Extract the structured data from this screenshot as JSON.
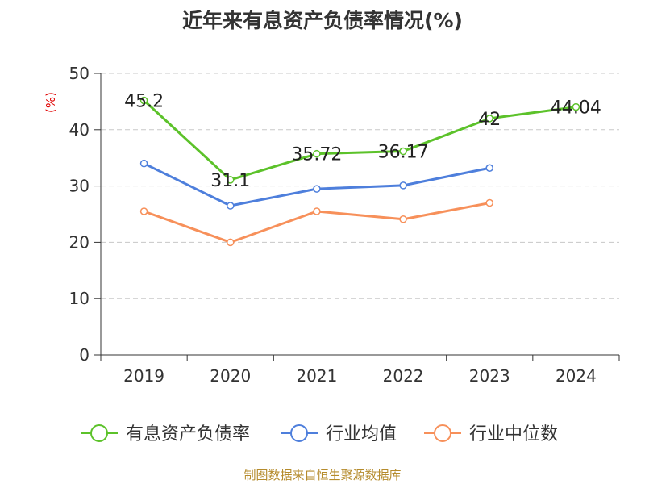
{
  "chart_data": {
    "type": "line",
    "title": "近年来有息资产负债率情况(%)",
    "ylabel": "(%)",
    "xlabel": "",
    "categories": [
      "2019",
      "2020",
      "2021",
      "2022",
      "2023",
      "2024"
    ],
    "ylim": [
      0,
      50
    ],
    "yticks": [
      0,
      10,
      20,
      30,
      40,
      50
    ],
    "grid": true,
    "legend_position": "bottom",
    "series": [
      {
        "name": "有息资产负债率",
        "color": "#5cc22a",
        "values": [
          45.2,
          31.1,
          35.72,
          36.17,
          42,
          44.04
        ],
        "labels": [
          "45.2",
          "31.1",
          "35.72",
          "36.17",
          "42",
          "44.04"
        ]
      },
      {
        "name": "行业均值",
        "color": "#4e7fdc",
        "values": [
          34.0,
          26.5,
          29.5,
          30.1,
          33.2,
          null
        ]
      },
      {
        "name": "行业中位数",
        "color": "#f7905a",
        "values": [
          25.5,
          20.0,
          25.5,
          24.1,
          27.0,
          null
        ]
      }
    ]
  },
  "source": "制图数据来自恒生聚源数据库"
}
